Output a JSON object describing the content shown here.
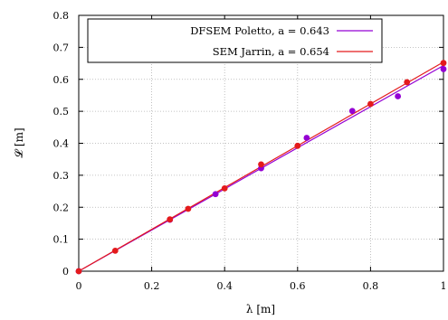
{
  "chart_data": {
    "type": "scatter",
    "xlabel": "λ [m]",
    "ylabel": "𝓛 [m]",
    "xlim": [
      0,
      1
    ],
    "ylim": [
      0,
      0.8
    ],
    "x_ticks": [
      "0",
      "0.2",
      "0.4",
      "0.6",
      "0.8",
      "1"
    ],
    "y_ticks": [
      "0",
      "0.1",
      "0.2",
      "0.3",
      "0.4",
      "0.5",
      "0.6",
      "0.7",
      "0.8"
    ],
    "x_tick_values": [
      0,
      0.2,
      0.4,
      0.6,
      0.8,
      1.0
    ],
    "y_tick_values": [
      0,
      0.1,
      0.2,
      0.3,
      0.4,
      0.5,
      0.6,
      0.7,
      0.8
    ],
    "grid": true,
    "legend_position": "top-center",
    "series": [
      {
        "name": "DFSEM Poletto, a = 0.643",
        "color": "#9400d3",
        "fit_slope": 0.643,
        "points": [
          [
            0,
            0
          ],
          [
            0.25,
            0.161
          ],
          [
            0.375,
            0.241
          ],
          [
            0.5,
            0.322
          ],
          [
            0.625,
            0.417
          ],
          [
            0.75,
            0.501
          ],
          [
            0.875,
            0.547
          ],
          [
            1.0,
            0.632
          ]
        ]
      },
      {
        "name": "SEM Jarrin, a = 0.654",
        "color": "#e41a1c",
        "fit_slope": 0.654,
        "points": [
          [
            0,
            0
          ],
          [
            0.1,
            0.064
          ],
          [
            0.25,
            0.162
          ],
          [
            0.3,
            0.195
          ],
          [
            0.4,
            0.259
          ],
          [
            0.5,
            0.334
          ],
          [
            0.6,
            0.392
          ],
          [
            0.8,
            0.523
          ],
          [
            0.9,
            0.591
          ],
          [
            1.0,
            0.651
          ]
        ]
      }
    ]
  }
}
